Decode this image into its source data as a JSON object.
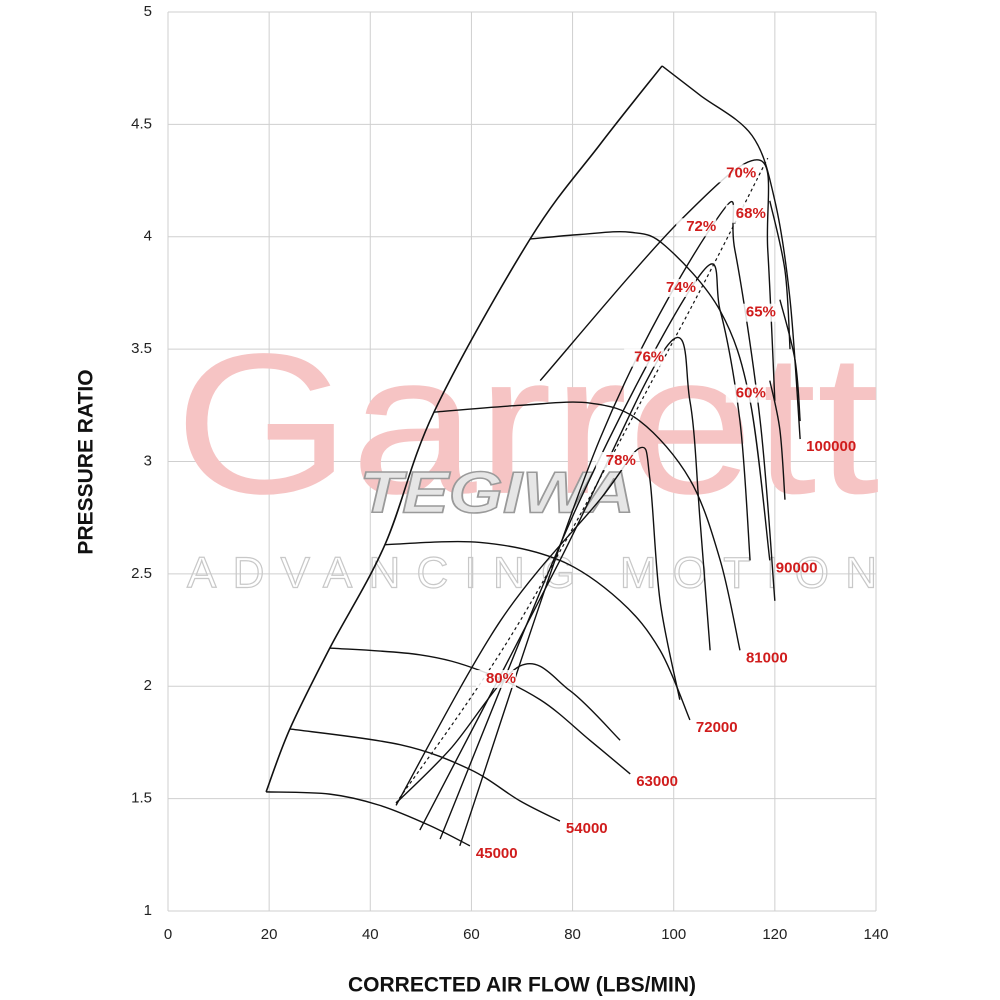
{
  "chart_data": {
    "type": "compressor-map",
    "x_label": "CORRECTED AIR FLOW (LBS/MIN)",
    "y_label": "PRESSURE RATIO",
    "xlim": [
      0,
      140
    ],
    "xticks": [
      0,
      20,
      40,
      60,
      80,
      100,
      120,
      140
    ],
    "ylim": [
      1,
      5
    ],
    "yticks": [
      1,
      1.5,
      2,
      2.5,
      3,
      3.5,
      4,
      4.5,
      5
    ],
    "grid": true,
    "line_color": "#111111",
    "label_color": "#d01c1c",
    "watermark": {
      "brand": "Garrett",
      "tagline": "ADVANCING MOTION",
      "logo": "TEGIWA"
    },
    "surge_line": {
      "x": [
        19.4,
        24.1,
        32.0,
        42.9,
        52.6,
        71.6,
        85.4,
        97.7
      ],
      "values": [
        1.53,
        1.81,
        2.17,
        2.63,
        3.22,
        3.99,
        4.41,
        4.76
      ]
    },
    "peak_line": {
      "x": [
        45.1,
        69.6,
        101.2,
        118.6
      ],
      "values": [
        1.48,
        2.29,
        3.59,
        4.35
      ]
    },
    "speed_lines": [
      {
        "name": "45000",
        "x": [
          19.4,
          32.0,
          41.9,
          51.8,
          59.7
        ],
        "values": [
          1.53,
          1.52,
          1.47,
          1.38,
          1.29
        ]
      },
      {
        "name": "54000",
        "x": [
          24.1,
          45.9,
          59.7,
          69.6,
          77.5
        ],
        "values": [
          1.81,
          1.74,
          1.63,
          1.49,
          1.4
        ]
      },
      {
        "name": "63000",
        "x": [
          32.0,
          49.8,
          61.7,
          73.6,
          83.4,
          91.4
        ],
        "values": [
          2.17,
          2.14,
          2.07,
          1.94,
          1.76,
          1.61
        ]
      },
      {
        "name": "72000",
        "x": [
          42.9,
          61.7,
          77.5,
          89.4,
          97.3,
          103.2
        ],
        "values": [
          2.63,
          2.64,
          2.56,
          2.38,
          2.16,
          1.85
        ]
      },
      {
        "name": "81000",
        "x": [
          52.6,
          69.6,
          83.4,
          93.3,
          103.2,
          109.2,
          113.1
        ],
        "values": [
          3.22,
          3.25,
          3.26,
          3.18,
          2.92,
          2.56,
          2.16
        ]
      },
      {
        "name": "90000",
        "x": [
          71.6,
          81.5,
          91.4,
          98.3,
          109.2,
          115.1,
          119.0
        ],
        "values": [
          3.99,
          4.01,
          4.02,
          3.96,
          3.67,
          3.27,
          2.56
        ]
      },
      {
        "name": "100000",
        "x": [
          97.7,
          105.2,
          115.5,
          120.0,
          123.0,
          125.0
        ],
        "values": [
          4.76,
          4.63,
          4.45,
          4.16,
          3.72,
          3.1
        ]
      }
    ],
    "efficiency_lines": [
      {
        "name": "80%",
        "x": [
          45.1,
          55.8,
          69.6,
          79.5,
          89.4
        ],
        "values": [
          1.48,
          1.72,
          2.09,
          1.98,
          1.76
        ]
      },
      {
        "name": "78%",
        "x": [
          45.1,
          65.7,
          85.4,
          93.3,
          95.3,
          97.3,
          101.2
        ],
        "values": [
          1.47,
          2.29,
          2.83,
          3.06,
          2.92,
          2.38,
          1.94
        ]
      },
      {
        "name": "76%",
        "x": [
          49.8,
          77.5,
          98.9,
          103.2,
          105.2,
          107.2
        ],
        "values": [
          1.36,
          2.56,
          3.52,
          3.27,
          2.74,
          2.16
        ]
      },
      {
        "name": "74%",
        "x": [
          53.8,
          81.5,
          105.2,
          109.2,
          113.1,
          115.1
        ],
        "values": [
          1.32,
          2.83,
          3.83,
          3.67,
          3.18,
          2.56
        ]
      },
      {
        "name": "72%",
        "x": [
          57.7,
          85.4,
          109.2,
          112.1,
          117.1,
          120.0
        ],
        "values": [
          1.29,
          3.1,
          4.1,
          3.94,
          3.18,
          2.38
        ]
      },
      {
        "name": "70%",
        "x": [
          73.6,
          101.2,
          117.1,
          118.6,
          120.0
        ],
        "values": [
          3.36,
          4.07,
          4.34,
          3.94,
          3.27
        ]
      },
      {
        "name": "68%",
        "x": [
          119.0,
          122.0,
          123.0
        ],
        "values": [
          4.16,
          3.85,
          3.5
        ]
      },
      {
        "name": "65%",
        "x": [
          121.0,
          124.0,
          125.0
        ],
        "values": [
          3.72,
          3.45,
          3.18
        ]
      },
      {
        "name": "60%",
        "x": [
          119.0,
          121.0,
          122.0
        ],
        "values": [
          3.36,
          3.14,
          2.83
        ]
      }
    ]
  }
}
